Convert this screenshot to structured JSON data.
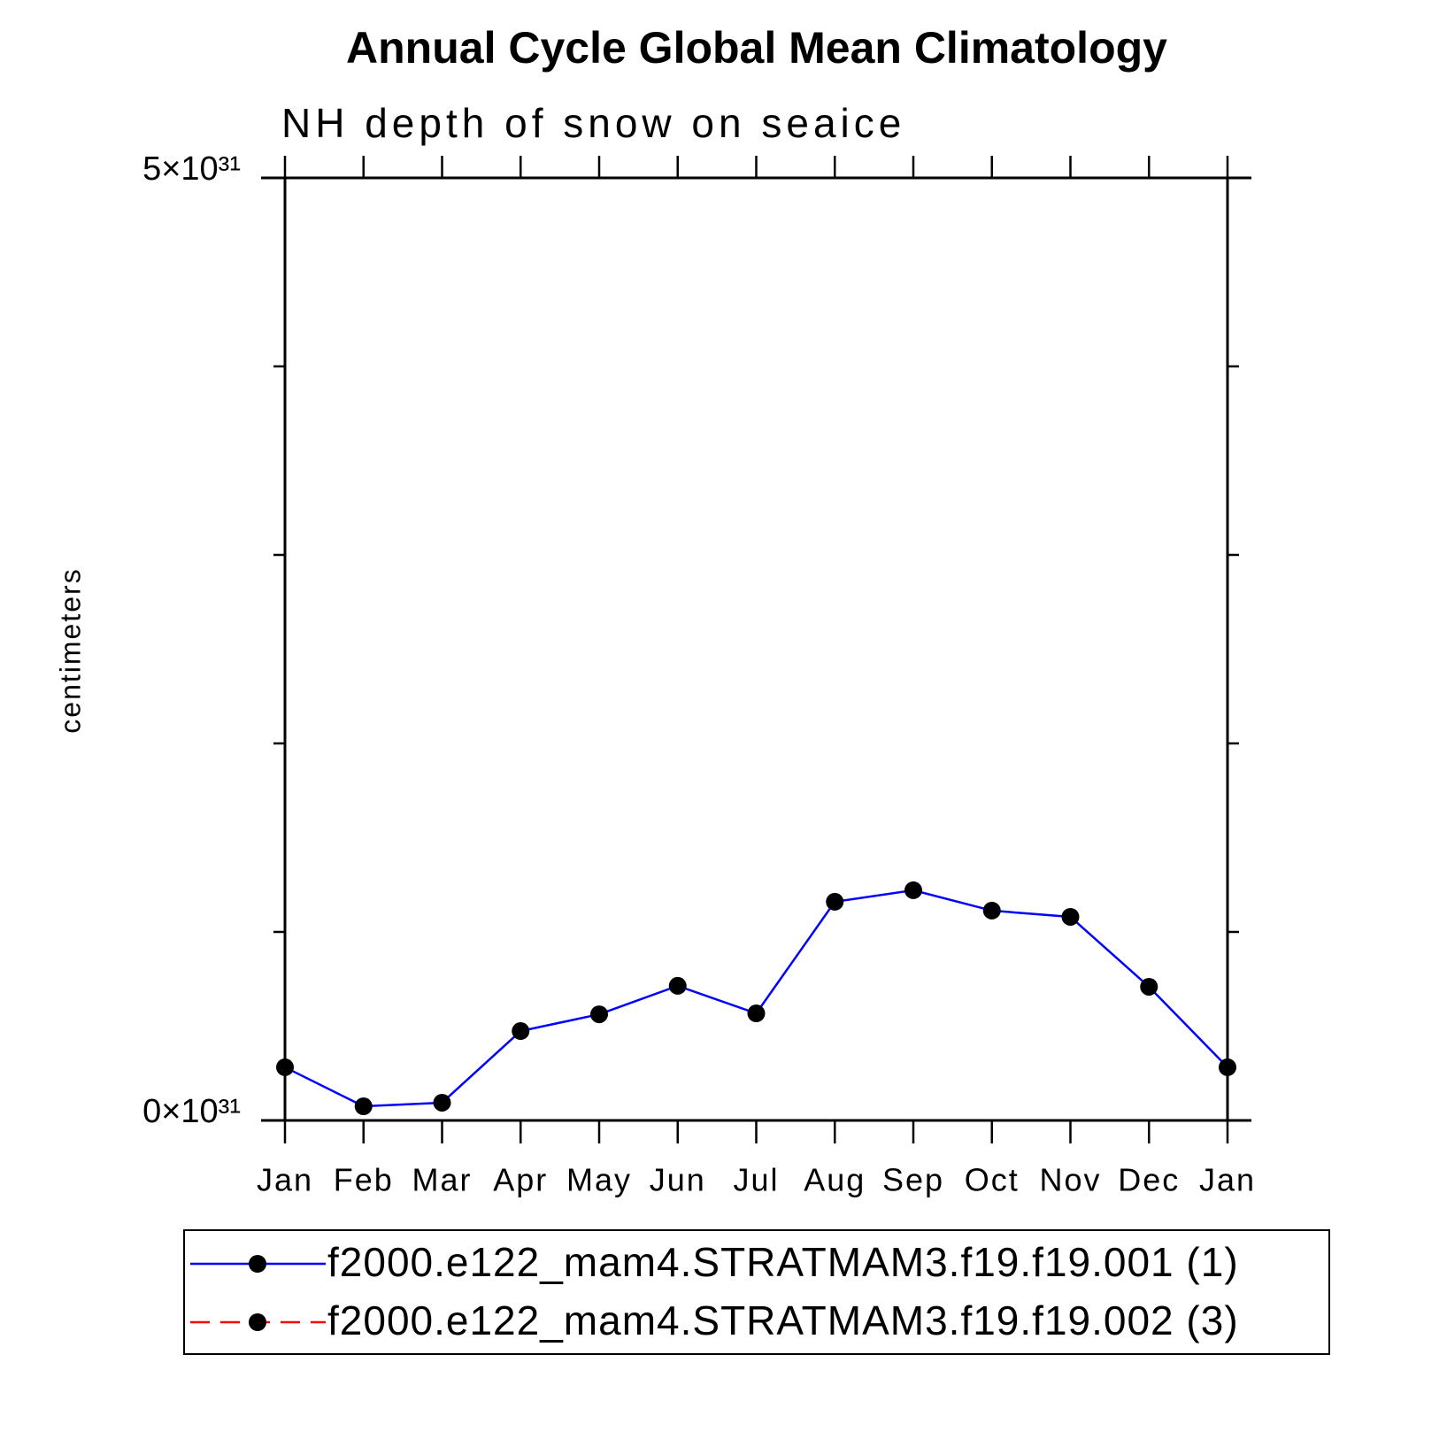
{
  "chart_data": {
    "type": "line",
    "title": "Annual Cycle Global Mean Climatology",
    "subtitle": "NH depth of snow on seaice",
    "y_label": "centimeters",
    "categories": [
      "Jan",
      "Feb",
      "Mar",
      "Apr",
      "May",
      "Jun",
      "Jul",
      "Aug",
      "Sep",
      "Oct",
      "Nov",
      "Dec",
      "Jan"
    ],
    "series": [
      {
        "name": "f2000.e122_mam4.STRATMAM3.f19.f19.001 (1)",
        "color": "#0000ff",
        "dash": "solid",
        "values": [
          2.82e+30,
          7.5e+29,
          9.4e+29,
          4.74e+30,
          5.63e+30,
          7.14e+30,
          5.68e+30,
          1.16e+31,
          1.221e+31,
          1.113e+31,
          1.08e+31,
          7.09e+30,
          2.82e+30
        ]
      },
      {
        "name": "f2000.e122_mam4.STRATMAM3.f19.f19.002 (3)",
        "color": "#ff0000",
        "dash": "dashed",
        "values": [
          null,
          null,
          null,
          null,
          null,
          null,
          null,
          null,
          null,
          null,
          null,
          null,
          null
        ]
      }
    ],
    "marker_color": "#000000",
    "ylim": [
      0,
      5e+31
    ],
    "yticks": [
      {
        "value": 0,
        "label": "0×10³¹"
      },
      {
        "value": 5e+31,
        "label": "5×10³¹"
      }
    ],
    "yminorticks": [
      1e+31,
      2e+31,
      3e+31,
      4e+31
    ]
  }
}
